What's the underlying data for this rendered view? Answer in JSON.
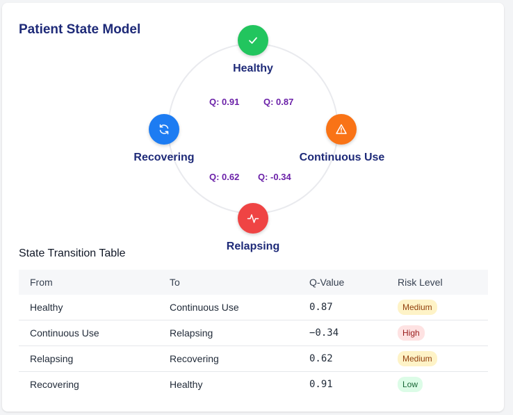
{
  "title": "Patient State Model",
  "diagram": {
    "nodes": {
      "healthy": {
        "label": "Healthy",
        "color": "#22c55e",
        "icon": "check-icon"
      },
      "continuous_use": {
        "label": "Continuous Use",
        "color": "#f97316",
        "icon": "warning-triangle-icon"
      },
      "relapsing": {
        "label": "Relapsing",
        "color": "#ef4444",
        "icon": "activity-pulse-icon"
      },
      "recovering": {
        "label": "Recovering",
        "color": "#1d7cf2",
        "icon": "refresh-icon"
      }
    },
    "edge_labels": {
      "recovering_to_healthy": "Q: 0.91",
      "healthy_to_continuous_use": "Q: 0.87",
      "relapsing_to_recovering": "Q: 0.62",
      "continuous_use_to_relapsing": "Q: -0.34"
    }
  },
  "table": {
    "title": "State Transition Table",
    "columns": [
      "From",
      "To",
      "Q-Value",
      "Risk Level"
    ],
    "rows": [
      {
        "from": "Healthy",
        "to": "Continuous Use",
        "q": "0.87",
        "risk": "Medium"
      },
      {
        "from": "Continuous Use",
        "to": "Relapsing",
        "q": "−0.34",
        "risk": "High"
      },
      {
        "from": "Relapsing",
        "to": "Recovering",
        "q": "0.62",
        "risk": "Medium"
      },
      {
        "from": "Recovering",
        "to": "Healthy",
        "q": "0.91",
        "risk": "Low"
      }
    ]
  },
  "risk_colors": {
    "Medium": {
      "bg": "#fef3c7",
      "fg": "#92400e"
    },
    "High": {
      "bg": "#fee2e2",
      "fg": "#991b1b"
    },
    "Low": {
      "bg": "#dcfce7",
      "fg": "#166534"
    }
  }
}
